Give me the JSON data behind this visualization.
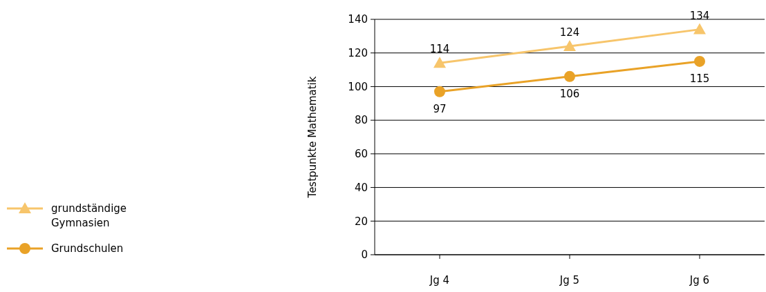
{
  "chart_data": {
    "type": "line",
    "ylabel": "Testpunkte Mathematik",
    "categories": [
      "Jg 4",
      "Jg 5",
      "Jg 6"
    ],
    "series": [
      {
        "name": "grundständige Gymnasien",
        "color": "#f7c56b",
        "values": [
          114,
          124,
          134
        ],
        "marker": "triangle"
      },
      {
        "name": "Grundschulen",
        "color": "#e9a227",
        "values": [
          97,
          106,
          115
        ],
        "marker": "circle"
      }
    ],
    "ylim": [
      0,
      140
    ],
    "yticks": [
      0,
      20,
      40,
      60,
      80,
      100,
      120,
      140
    ],
    "grid": "y",
    "legend": "left",
    "data_labels": true
  }
}
